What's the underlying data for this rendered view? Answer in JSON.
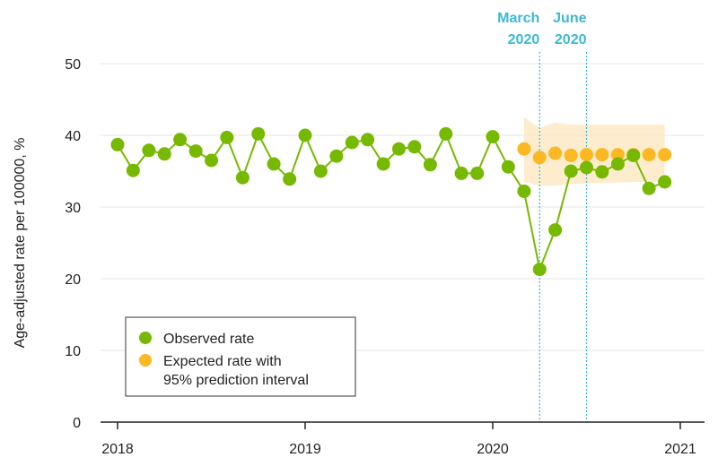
{
  "chart_data": {
    "type": "line",
    "ylabel": "Age-adjusted rate per 100000, %",
    "ylim": [
      0,
      50
    ],
    "y_ticks": [
      "0",
      "10",
      "20",
      "30",
      "40",
      "50"
    ],
    "x_ticks": [
      {
        "label": "2018",
        "value": 2018.0
      },
      {
        "label": "2019",
        "value": 2019.0
      },
      {
        "label": "2020",
        "value": 2020.0
      },
      {
        "label": "2021",
        "value": 2021.0
      }
    ],
    "xlim": [
      2018.0,
      2021.0
    ],
    "grid": true,
    "legend_position": "bottom-left",
    "colors": {
      "observed": "#76b900",
      "expected": "#fbb823",
      "interval": "#fde9c4",
      "event": "#3bb8d4",
      "grid": "#e6e6e6",
      "axis": "#222222"
    },
    "events": [
      {
        "x": 2020.25,
        "line1": "March",
        "line2": "2020"
      },
      {
        "x": 2020.5,
        "line1": "June",
        "line2": "2020"
      }
    ],
    "series": [
      {
        "name": "Observed rate",
        "x": [
          2018.0,
          2018.083,
          2018.167,
          2018.25,
          2018.333,
          2018.417,
          2018.5,
          2018.583,
          2018.667,
          2018.75,
          2018.833,
          2018.917,
          2019.0,
          2019.083,
          2019.167,
          2019.25,
          2019.333,
          2019.417,
          2019.5,
          2019.583,
          2019.667,
          2019.75,
          2019.833,
          2019.917,
          2020.0,
          2020.083,
          2020.167,
          2020.25,
          2020.333,
          2020.417,
          2020.5,
          2020.583,
          2020.667,
          2020.75,
          2020.833,
          2020.917
        ],
        "y": [
          38.7,
          35.1,
          37.9,
          37.4,
          39.4,
          37.8,
          36.5,
          39.7,
          34.1,
          40.2,
          36.0,
          33.9,
          40.0,
          35.0,
          37.1,
          39.0,
          39.4,
          36.0,
          38.1,
          38.4,
          35.9,
          40.2,
          34.7,
          34.7,
          39.8,
          35.6,
          32.2,
          21.3,
          26.8,
          35.0,
          35.5,
          34.9,
          36.0,
          37.2,
          32.6,
          33.5
        ]
      },
      {
        "name": "Expected rate with 95% prediction interval",
        "x": [
          2020.167,
          2020.25,
          2020.333,
          2020.417,
          2020.5,
          2020.583,
          2020.667,
          2020.75,
          2020.833,
          2020.917
        ],
        "y": [
          38.1,
          36.9,
          37.5,
          37.2,
          37.3,
          37.3,
          37.3,
          37.3,
          37.3,
          37.3
        ],
        "lower": [
          33.5,
          33.0,
          33.0,
          33.2,
          33.3,
          33.4,
          33.4,
          33.5,
          33.5,
          33.5
        ],
        "upper": [
          42.5,
          41.0,
          41.8,
          41.5,
          41.5,
          41.5,
          41.5,
          41.5,
          41.5,
          41.5
        ]
      }
    ],
    "legend": {
      "observed_label": "Observed rate",
      "expected_label_line1": "Expected rate with",
      "expected_label_line2": "95% prediction interval"
    }
  }
}
